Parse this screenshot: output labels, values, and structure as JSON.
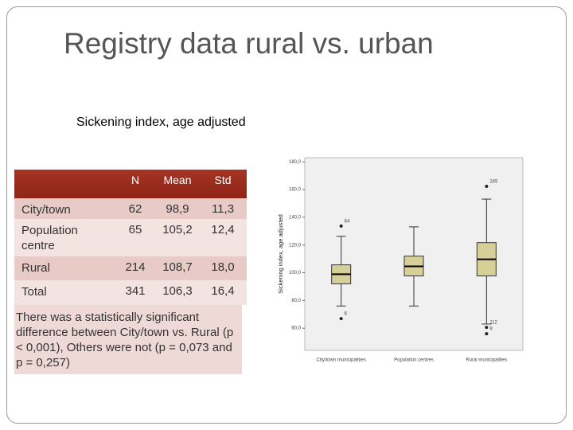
{
  "title": "Registry data rural vs. urban",
  "subtitle": "Sickening index, age adjusted",
  "table": {
    "header": [
      "N",
      "Mean",
      "Std"
    ],
    "rows": [
      {
        "label": "City/town",
        "cells": [
          "62",
          "98,9",
          "11,3"
        ]
      },
      {
        "label": "Population centre",
        "cells": [
          "65",
          "105,2",
          "12,4"
        ]
      },
      {
        "label": "Rural",
        "cells": [
          "214",
          "108,7",
          "18,0"
        ]
      },
      {
        "label": "Total",
        "cells": [
          "341",
          "106,3",
          "16,4"
        ]
      }
    ],
    "note": "There was a statistically significant difference between City/town vs. Rural (p < 0,001), Others were not (p = 0,073 and p = 0,257)"
  },
  "chart_data": {
    "type": "box",
    "y_label": "Sickening index, age adjusted",
    "categories": [
      "City/town municipalities",
      "Population centres",
      "Rural municipalities"
    ],
    "color": "#d6cf98",
    "boxes": [
      {
        "whisker_low": 76,
        "q1": 92,
        "median": 98.9,
        "q3": 105.7,
        "whisker_high": 126.3,
        "outliers": [
          {
            "value": 133.7,
            "case": "64"
          },
          {
            "value": 66.9,
            "case": "6"
          }
        ]
      },
      {
        "whisker_low": 76,
        "q1": 97.7,
        "median": 104.6,
        "q3": 112,
        "whisker_high": 133.1,
        "outliers": []
      },
      {
        "whisker_low": 63,
        "q1": 97.7,
        "median": 109.7,
        "q3": 121.7,
        "whisker_high": 153.1,
        "outliers": [
          {
            "value": 162.3,
            "case": "245"
          },
          {
            "value": 60.6,
            "case": "112"
          },
          {
            "value": 56,
            "case": "9"
          }
        ]
      }
    ],
    "ylim": [
      44,
      183
    ],
    "yticks": [
      {
        "value": 60,
        "label": "60,0"
      },
      {
        "value": 80,
        "label": "80,0"
      },
      {
        "value": 100,
        "label": "100,0"
      },
      {
        "value": 120,
        "label": "120,0"
      },
      {
        "value": 140,
        "label": "140,0"
      },
      {
        "value": 160,
        "label": "160,0"
      },
      {
        "value": 180,
        "label": "180,0"
      }
    ]
  }
}
